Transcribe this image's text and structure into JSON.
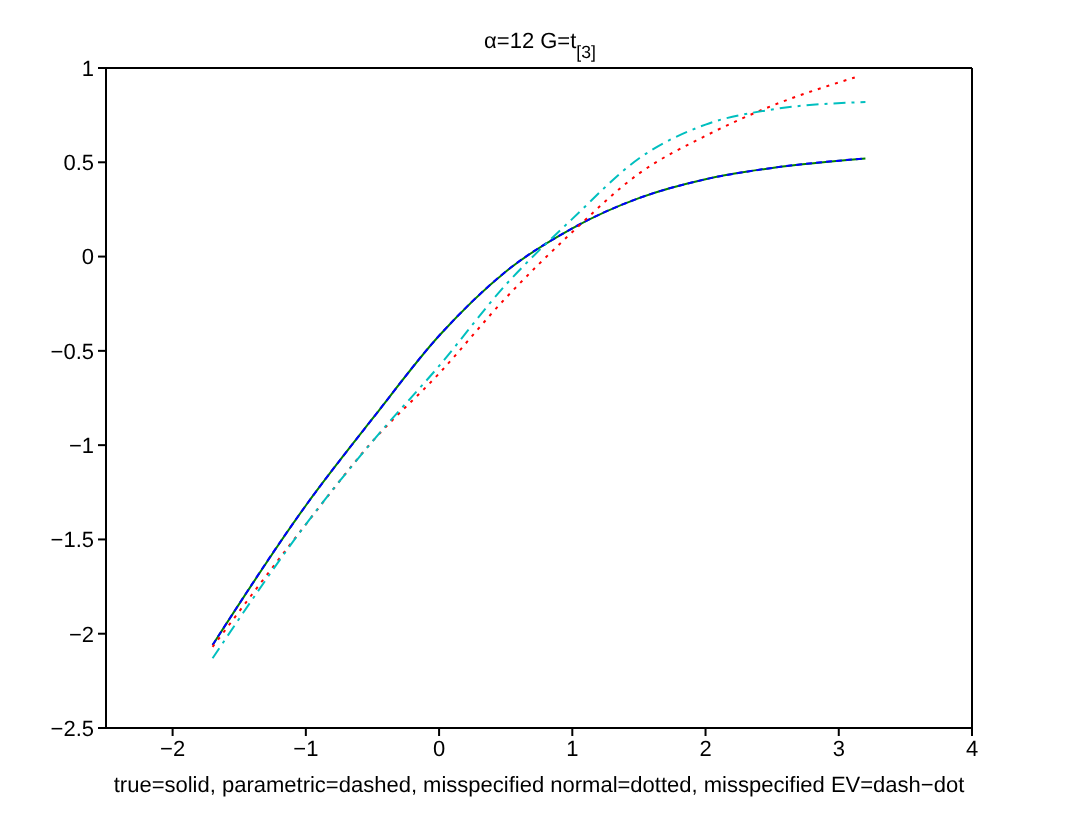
{
  "chart_data": {
    "type": "line",
    "title": "α=12  G=t$_{[3]}$",
    "xlabel": "true=solid, parametric=dashed, misspecified normal=dotted, misspecified EV=dash−dot",
    "xlim": [
      -2.5,
      4
    ],
    "xticks": [
      {
        "value": -2,
        "label": "−2"
      },
      {
        "value": -1,
        "label": "−1"
      },
      0,
      1,
      2,
      3,
      4
    ],
    "ylim": [
      -2.5,
      1
    ],
    "yticks": [
      {
        "value": -2.5,
        "label": "−2.5"
      },
      {
        "value": -2,
        "label": "−2"
      },
      {
        "value": -1.5,
        "label": "−1.5"
      },
      {
        "value": -1,
        "label": "−1"
      },
      {
        "value": -0.5,
        "label": "−0.5"
      },
      0,
      0.5,
      1
    ],
    "grid": false,
    "marker": "none",
    "series": [
      {
        "color": "#008000",
        "line_style": "solid",
        "x": [
          -1.7,
          -1,
          -0.5,
          0,
          0.5,
          1,
          1.5,
          2,
          2.5,
          3.2
        ],
        "values": [
          -2.06,
          -1.32,
          -0.86,
          -0.42,
          -0.08,
          0.15,
          0.31,
          0.41,
          0.47,
          0.52
        ]
      },
      {
        "color": "#0000ff",
        "line_style": "dashed",
        "x": [
          -1.7,
          -1,
          -0.5,
          0,
          0.5,
          1,
          1.5,
          2,
          2.5,
          3.2
        ],
        "values": [
          -2.06,
          -1.32,
          -0.86,
          -0.42,
          -0.08,
          0.15,
          0.31,
          0.41,
          0.47,
          0.52
        ]
      },
      {
        "color": "#ff0000",
        "line_style": "dotted",
        "x": [
          -1.7,
          -1,
          -0.5,
          0,
          0.5,
          1,
          1.5,
          2,
          2.5,
          3.12
        ],
        "values": [
          -2.07,
          -1.42,
          -0.98,
          -0.62,
          -0.22,
          0.13,
          0.44,
          0.64,
          0.8,
          0.95
        ]
      },
      {
        "color": "#00bfbf",
        "line_style": "dashdot",
        "x": [
          -1.7,
          -1,
          -0.5,
          0,
          0.5,
          1,
          1.5,
          2,
          2.5,
          3.2
        ],
        "values": [
          -2.13,
          -1.42,
          -0.98,
          -0.58,
          -0.15,
          0.2,
          0.52,
          0.7,
          0.78,
          0.82
        ]
      }
    ]
  }
}
